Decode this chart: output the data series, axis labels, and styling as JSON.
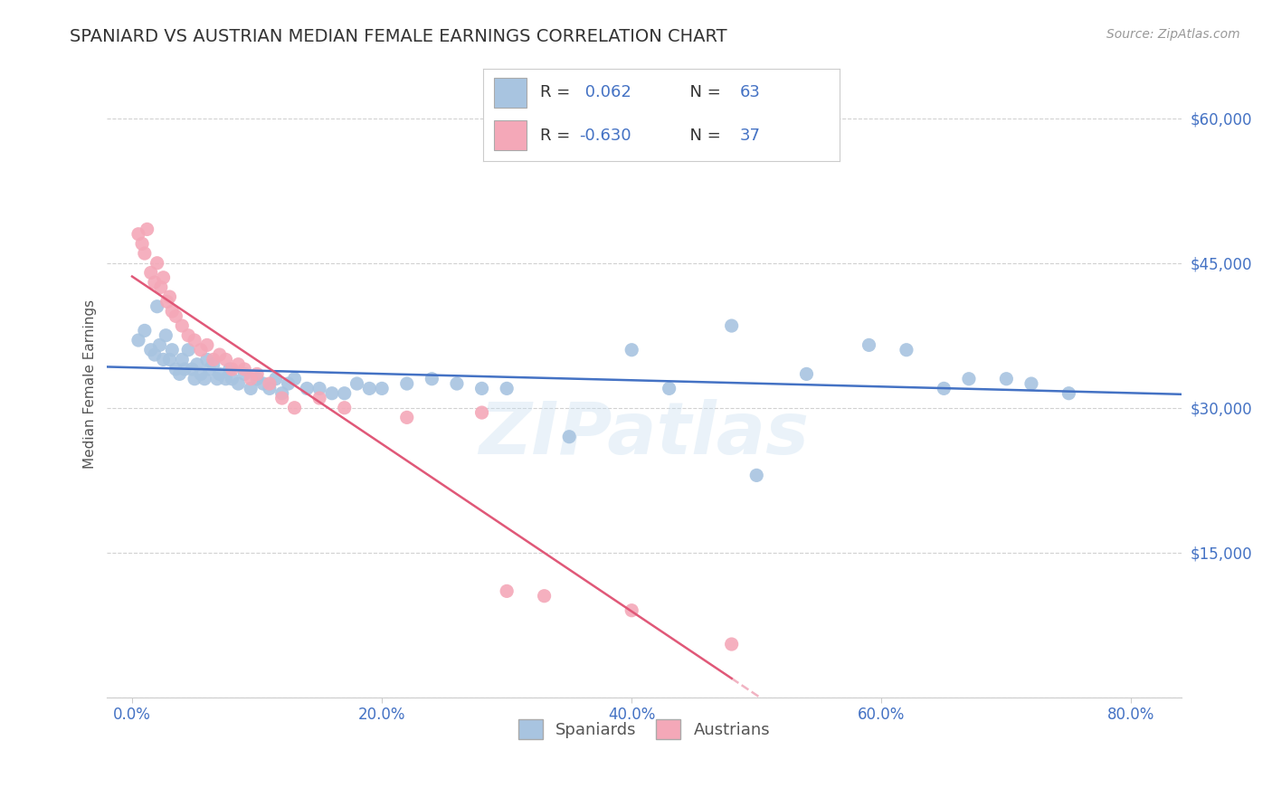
{
  "title": "SPANIARD VS AUSTRIAN MEDIAN FEMALE EARNINGS CORRELATION CHART",
  "source_text": "Source: ZipAtlas.com",
  "xlabel_ticks": [
    "0.0%",
    "20.0%",
    "40.0%",
    "60.0%",
    "80.0%"
  ],
  "xlabel_values": [
    0.0,
    0.2,
    0.4,
    0.6,
    0.8
  ],
  "ylabel_ticks": [
    0,
    15000,
    30000,
    45000,
    60000
  ],
  "ylabel_labels": [
    "",
    "$15,000",
    "$30,000",
    "$45,000",
    "$60,000"
  ],
  "xlim": [
    -0.02,
    0.84
  ],
  "ylim": [
    0,
    65000
  ],
  "spaniard_color": "#a8c4e0",
  "austrian_color": "#f4a8b8",
  "spaniard_line_color": "#4472c4",
  "austrian_line_color": "#e05878",
  "spaniard_R": 0.062,
  "spaniard_N": 63,
  "austrian_R": -0.63,
  "austrian_N": 37,
  "legend_label_1": "Spaniards",
  "legend_label_2": "Austrians",
  "watermark": "ZIPatlas",
  "background_color": "#ffffff",
  "grid_color": "#cccccc",
  "title_color": "#333333",
  "axis_label_color": "#4472c4",
  "ylabel": "Median Female Earnings",
  "spaniard_x": [
    0.005,
    0.01,
    0.015,
    0.018,
    0.02,
    0.022,
    0.025,
    0.027,
    0.03,
    0.032,
    0.035,
    0.038,
    0.04,
    0.042,
    0.045,
    0.048,
    0.05,
    0.052,
    0.055,
    0.058,
    0.06,
    0.062,
    0.065,
    0.068,
    0.07,
    0.075,
    0.078,
    0.08,
    0.085,
    0.09,
    0.095,
    0.1,
    0.105,
    0.11,
    0.115,
    0.12,
    0.125,
    0.13,
    0.14,
    0.15,
    0.16,
    0.17,
    0.18,
    0.19,
    0.2,
    0.22,
    0.24,
    0.26,
    0.28,
    0.3,
    0.35,
    0.4,
    0.43,
    0.48,
    0.5,
    0.54,
    0.59,
    0.62,
    0.65,
    0.67,
    0.7,
    0.72,
    0.75
  ],
  "spaniard_y": [
    37000,
    38000,
    36000,
    35500,
    40500,
    36500,
    35000,
    37500,
    35000,
    36000,
    34000,
    33500,
    35000,
    34000,
    36000,
    34000,
    33000,
    34500,
    33500,
    33000,
    35000,
    34000,
    34500,
    33000,
    33500,
    33000,
    34000,
    33000,
    32500,
    33500,
    32000,
    33000,
    32500,
    32000,
    33000,
    31500,
    32500,
    33000,
    32000,
    32000,
    31500,
    31500,
    32500,
    32000,
    32000,
    32500,
    33000,
    32500,
    32000,
    32000,
    27000,
    36000,
    32000,
    38500,
    23000,
    33500,
    36500,
    36000,
    32000,
    33000,
    33000,
    32500,
    31500
  ],
  "austrian_x": [
    0.005,
    0.008,
    0.01,
    0.012,
    0.015,
    0.018,
    0.02,
    0.023,
    0.025,
    0.028,
    0.03,
    0.032,
    0.035,
    0.04,
    0.045,
    0.05,
    0.055,
    0.06,
    0.065,
    0.07,
    0.075,
    0.08,
    0.085,
    0.09,
    0.095,
    0.1,
    0.11,
    0.12,
    0.13,
    0.15,
    0.17,
    0.22,
    0.28,
    0.3,
    0.33,
    0.4,
    0.48
  ],
  "austrian_y": [
    48000,
    47000,
    46000,
    48500,
    44000,
    43000,
    45000,
    42500,
    43500,
    41000,
    41500,
    40000,
    39500,
    38500,
    37500,
    37000,
    36000,
    36500,
    35000,
    35500,
    35000,
    34000,
    34500,
    34000,
    33000,
    33500,
    32500,
    31000,
    30000,
    31000,
    30000,
    29000,
    29500,
    11000,
    10500,
    9000,
    5500
  ],
  "dashed_line_color": "#e05878"
}
